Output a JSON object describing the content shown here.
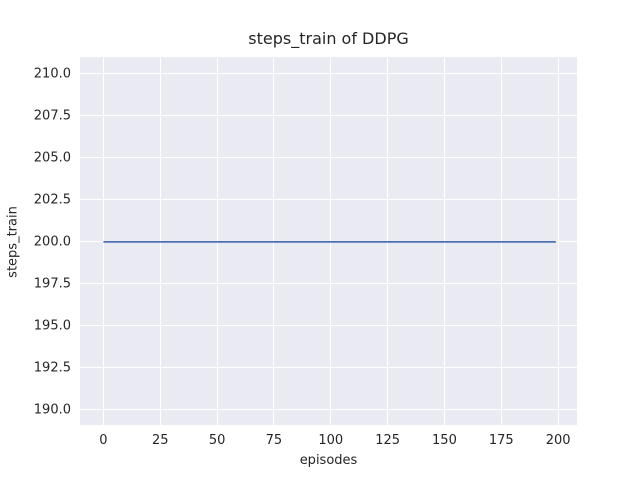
{
  "chart_data": {
    "type": "line",
    "title": "steps_train of DDPG",
    "xlabel": "episodes",
    "ylabel": "steps_train",
    "grid": true,
    "legend": null,
    "xlim": [
      -10.3,
      208.3
    ],
    "ylim": [
      189.1,
      211.0
    ],
    "x_ticks": [
      {
        "value": 0,
        "label": "0"
      },
      {
        "value": 25,
        "label": "25"
      },
      {
        "value": 50,
        "label": "50"
      },
      {
        "value": 75,
        "label": "75"
      },
      {
        "value": 100,
        "label": "100"
      },
      {
        "value": 125,
        "label": "125"
      },
      {
        "value": 150,
        "label": "150"
      },
      {
        "value": 175,
        "label": "175"
      },
      {
        "value": 200,
        "label": "200"
      }
    ],
    "y_ticks": [
      {
        "value": 190.0,
        "label": "190.0"
      },
      {
        "value": 192.5,
        "label": "192.5"
      },
      {
        "value": 195.0,
        "label": "195.0"
      },
      {
        "value": 197.5,
        "label": "197.5"
      },
      {
        "value": 200.0,
        "label": "200.0"
      },
      {
        "value": 202.5,
        "label": "202.5"
      },
      {
        "value": 205.0,
        "label": "205.0"
      },
      {
        "value": 207.5,
        "label": "207.5"
      },
      {
        "value": 210.0,
        "label": "210.0"
      }
    ],
    "series": [
      {
        "name": "steps_train",
        "x": [
          0,
          199
        ],
        "y": [
          200,
          200
        ],
        "color": "#4c72b0",
        "linewidth": 1.8
      }
    ],
    "colors": {
      "figure_background": "#ffffff",
      "axes_background": "#eaeaf2",
      "gridline": "#ffffff",
      "text": "#262626"
    }
  }
}
